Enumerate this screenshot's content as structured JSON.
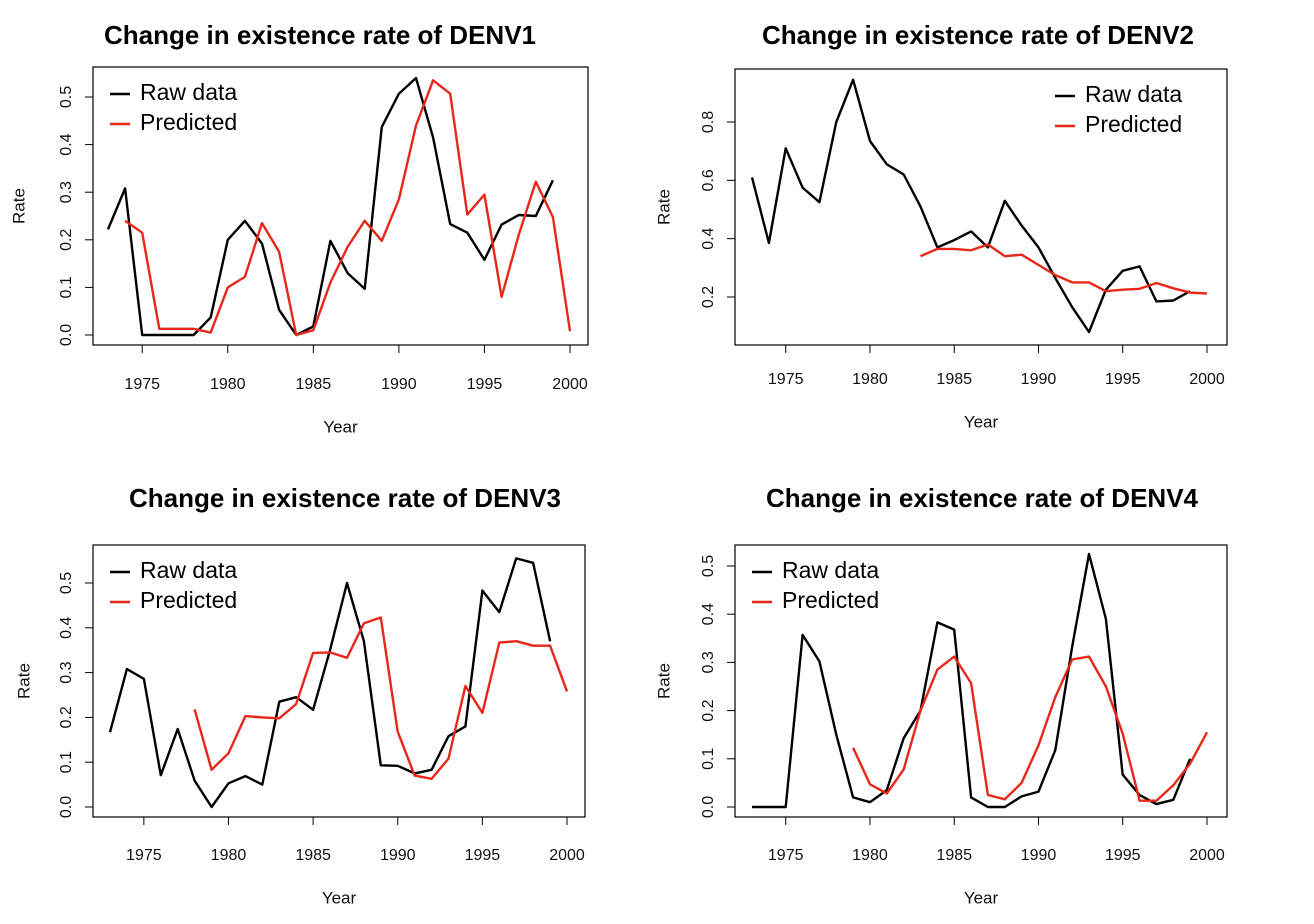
{
  "chart_data": [
    {
      "type": "line",
      "title": "Change in existence rate of DENV1",
      "xlabel": "Year",
      "ylabel": "Rate",
      "xlim": [
        1973,
        2000
      ],
      "ylim": [
        0,
        0.55
      ],
      "xticks": [
        "1975",
        "1980",
        "1985",
        "1990",
        "1995",
        "2000"
      ],
      "yticks": [
        "0.0",
        "0.1",
        "0.2",
        "0.3",
        "0.4",
        "0.5"
      ],
      "legend": "top-left",
      "series": [
        {
          "name": "Raw data",
          "color": "#000000",
          "x": [
            1973,
            1974,
            1975,
            1976,
            1977,
            1978,
            1979,
            1980,
            1981,
            1982,
            1983,
            1984,
            1985,
            1986,
            1987,
            1988,
            1989,
            1990,
            1991,
            1992,
            1993,
            1994,
            1995,
            1996,
            1997,
            1998,
            1999
          ],
          "y": [
            0.222,
            0.308,
            0.0,
            0.0,
            0.0,
            0.0,
            0.037,
            0.2,
            0.24,
            0.192,
            0.053,
            0.0,
            0.018,
            0.198,
            0.13,
            0.097,
            0.437,
            0.507,
            0.54,
            0.415,
            0.233,
            0.215,
            0.158,
            0.232,
            0.252,
            0.25,
            0.325
          ]
        },
        {
          "name": "Predicted",
          "color": "#e8271b",
          "x": [
            1974,
            1975,
            1976,
            1977,
            1978,
            1979,
            1980,
            1981,
            1982,
            1983,
            1984,
            1985,
            1986,
            1987,
            1988,
            1989,
            1990,
            1991,
            1992,
            1993,
            1994,
            1995,
            1996,
            1997,
            1998,
            1999,
            2000
          ],
          "y": [
            0.24,
            0.215,
            0.013,
            0.013,
            0.013,
            0.005,
            0.1,
            0.122,
            0.235,
            0.175,
            0.0,
            0.01,
            0.11,
            0.185,
            0.24,
            0.198,
            0.285,
            0.44,
            0.535,
            0.507,
            0.253,
            0.295,
            0.08,
            0.21,
            0.322,
            0.248,
            0.008
          ]
        }
      ]
    },
    {
      "type": "line",
      "title": "Change in existence rate of DENV2",
      "xlabel": "Year",
      "ylabel": "Rate",
      "xlim": [
        1973,
        2000
      ],
      "ylim": [
        0.08,
        0.94
      ],
      "xticks": [
        "1975",
        "1980",
        "1985",
        "1990",
        "1995",
        "2000"
      ],
      "yticks": [
        "0.2",
        "0.4",
        "0.6",
        "0.8"
      ],
      "legend": "top-right",
      "series": [
        {
          "name": "Raw data",
          "color": "#000000",
          "x": [
            1973,
            1974,
            1975,
            1976,
            1977,
            1978,
            1979,
            1980,
            1981,
            1982,
            1983,
            1984,
            1985,
            1986,
            1987,
            1988,
            1989,
            1990,
            1991,
            1992,
            1993,
            1994,
            1995,
            1996,
            1997,
            1998,
            1999
          ],
          "y": [
            0.61,
            0.385,
            0.71,
            0.575,
            0.525,
            0.8,
            0.945,
            0.735,
            0.655,
            0.62,
            0.51,
            0.37,
            0.395,
            0.425,
            0.37,
            0.53,
            0.445,
            0.37,
            0.265,
            0.165,
            0.08,
            0.225,
            0.29,
            0.305,
            0.185,
            0.188,
            0.22
          ]
        },
        {
          "name": "Predicted",
          "color": "#e8271b",
          "x": [
            1983,
            1984,
            1985,
            1986,
            1987,
            1988,
            1989,
            1990,
            1991,
            1992,
            1993,
            1994,
            1995,
            1996,
            1997,
            1998,
            1999,
            2000
          ],
          "y": [
            0.34,
            0.365,
            0.365,
            0.36,
            0.38,
            0.34,
            0.345,
            0.31,
            0.275,
            0.25,
            0.25,
            0.22,
            0.225,
            0.228,
            0.248,
            0.23,
            0.215,
            0.212
          ]
        }
      ]
    },
    {
      "type": "line",
      "title": "Change in existence rate of DENV3",
      "xlabel": "Year",
      "ylabel": "Rate",
      "xlim": [
        1973,
        2000
      ],
      "ylim": [
        0,
        0.555
      ],
      "xticks": [
        "1975",
        "1980",
        "1985",
        "1990",
        "1995",
        "2000"
      ],
      "yticks": [
        "0.0",
        "0.1",
        "0.2",
        "0.3",
        "0.4",
        "0.5"
      ],
      "legend": "top-left",
      "series": [
        {
          "name": "Raw data",
          "color": "#000000",
          "x": [
            1973,
            1974,
            1975,
            1976,
            1977,
            1978,
            1979,
            1980,
            1981,
            1982,
            1983,
            1984,
            1985,
            1986,
            1987,
            1988,
            1989,
            1990,
            1991,
            1992,
            1993,
            1994,
            1995,
            1996,
            1997,
            1998,
            1999
          ],
          "y": [
            0.167,
            0.308,
            0.286,
            0.071,
            0.174,
            0.059,
            0.0,
            0.053,
            0.069,
            0.05,
            0.235,
            0.245,
            0.217,
            0.35,
            0.5,
            0.37,
            0.093,
            0.092,
            0.075,
            0.083,
            0.158,
            0.18,
            0.483,
            0.435,
            0.555,
            0.545,
            0.37
          ]
        },
        {
          "name": "Predicted",
          "color": "#e8271b",
          "x": [
            1978,
            1979,
            1980,
            1981,
            1982,
            1983,
            1984,
            1985,
            1986,
            1987,
            1988,
            1989,
            1990,
            1991,
            1992,
            1993,
            1994,
            1995,
            1996,
            1997,
            1998,
            1999,
            2000
          ],
          "y": [
            0.218,
            0.083,
            0.12,
            0.203,
            0.2,
            0.198,
            0.23,
            0.344,
            0.345,
            0.333,
            0.41,
            0.423,
            0.168,
            0.07,
            0.063,
            0.108,
            0.27,
            0.21,
            0.367,
            0.37,
            0.36,
            0.36,
            0.258
          ]
        }
      ]
    },
    {
      "type": "line",
      "title": "Change in existence rate of DENV4",
      "xlabel": "Year",
      "ylabel": "Rate",
      "xlim": [
        1973,
        2000
      ],
      "ylim": [
        0,
        0.525
      ],
      "xticks": [
        "1975",
        "1980",
        "1985",
        "1990",
        "1995",
        "2000"
      ],
      "yticks": [
        "0.0",
        "0.1",
        "0.2",
        "0.3",
        "0.4",
        "0.5"
      ],
      "legend": "top-left",
      "series": [
        {
          "name": "Raw data",
          "color": "#000000",
          "x": [
            1973,
            1974,
            1975,
            1976,
            1977,
            1978,
            1979,
            1980,
            1981,
            1982,
            1983,
            1984,
            1985,
            1986,
            1987,
            1988,
            1989,
            1990,
            1991,
            1992,
            1993,
            1994,
            1995,
            1996,
            1997,
            1998,
            1999
          ],
          "y": [
            0.0,
            0.0,
            0.0,
            0.357,
            0.302,
            0.15,
            0.02,
            0.01,
            0.035,
            0.143,
            0.2,
            0.383,
            0.368,
            0.02,
            0.0,
            0.0,
            0.022,
            0.032,
            0.118,
            0.333,
            0.525,
            0.39,
            0.067,
            0.025,
            0.006,
            0.015,
            0.1
          ]
        },
        {
          "name": "Predicted",
          "color": "#e8271b",
          "x": [
            1979,
            1980,
            1981,
            1982,
            1983,
            1984,
            1985,
            1986,
            1987,
            1988,
            1989,
            1990,
            1991,
            1992,
            1993,
            1994,
            1995,
            1996,
            1997,
            1998,
            1999,
            2000
          ],
          "y": [
            0.123,
            0.047,
            0.028,
            0.078,
            0.2,
            0.285,
            0.312,
            0.257,
            0.025,
            0.016,
            0.05,
            0.128,
            0.228,
            0.306,
            0.312,
            0.25,
            0.152,
            0.013,
            0.013,
            0.045,
            0.09,
            0.155
          ]
        }
      ]
    }
  ]
}
